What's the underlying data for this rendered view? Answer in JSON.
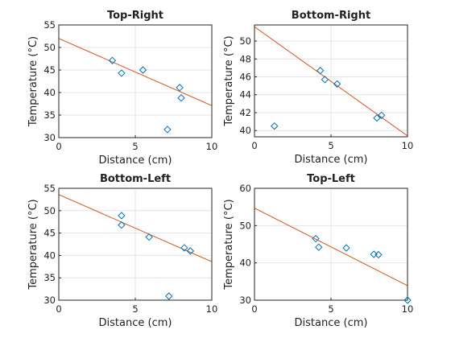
{
  "colors": {
    "points": "#0072bd",
    "fit_line": "#d95319",
    "grid": "#e4e4e4",
    "axes": "#262626"
  },
  "chart_data": [
    {
      "type": "scatter",
      "title": "Top-Right",
      "xlabel": "Distance (cm)",
      "ylabel": "Temperature (°C)",
      "xlim": [
        0,
        10
      ],
      "ylim": [
        30,
        55
      ],
      "xticks": [
        0,
        5,
        10
      ],
      "yticks": [
        30,
        35,
        40,
        45,
        50,
        55
      ],
      "grid": true,
      "points": {
        "x": [
          3.5,
          4.1,
          5.5,
          7.9,
          8.0,
          7.1
        ],
        "y": [
          47.1,
          44.3,
          45.0,
          41.1,
          38.8,
          31.8
        ]
      },
      "fit_line": {
        "x": [
          0,
          10
        ],
        "y": [
          52.0,
          37.1
        ]
      }
    },
    {
      "type": "scatter",
      "title": "Bottom-Right",
      "xlabel": "Distance (cm)",
      "ylabel": "Temperature (°C)",
      "xlim": [
        0,
        10
      ],
      "ylim": [
        39.3,
        51.8
      ],
      "xticks": [
        0,
        5,
        10
      ],
      "yticks": [
        40,
        42,
        44,
        46,
        48,
        50
      ],
      "grid": true,
      "points": {
        "x": [
          1.3,
          4.3,
          4.6,
          5.4,
          8.0,
          8.3
        ],
        "y": [
          40.5,
          46.7,
          45.7,
          45.2,
          41.4,
          41.7
        ]
      },
      "fit_line": {
        "x": [
          0,
          10
        ],
        "y": [
          51.6,
          39.4
        ]
      }
    },
    {
      "type": "scatter",
      "title": "Bottom-Left",
      "xlabel": "Distance (cm)",
      "ylabel": "Temperature (°C)",
      "xlim": [
        0,
        10
      ],
      "ylim": [
        30,
        55
      ],
      "xticks": [
        0,
        5,
        10
      ],
      "yticks": [
        30,
        35,
        40,
        45,
        50,
        55
      ],
      "grid": true,
      "points": {
        "x": [
          4.1,
          4.1,
          5.9,
          8.2,
          8.6,
          7.2
        ],
        "y": [
          48.9,
          46.8,
          44.1,
          41.7,
          41.0,
          30.9
        ]
      },
      "fit_line": {
        "x": [
          0,
          10
        ],
        "y": [
          53.6,
          38.6
        ]
      }
    },
    {
      "type": "scatter",
      "title": "Top-Left",
      "xlabel": "Distance (cm)",
      "ylabel": "Temperature (°C)",
      "xlim": [
        0,
        10
      ],
      "ylim": [
        30,
        60
      ],
      "xticks": [
        0,
        5,
        10
      ],
      "yticks": [
        30,
        40,
        50,
        60
      ],
      "grid": true,
      "points": {
        "x": [
          4.0,
          4.2,
          6.0,
          7.8,
          8.1,
          10.0
        ],
        "y": [
          46.5,
          44.2,
          44.0,
          42.3,
          42.2,
          30.0
        ]
      },
      "fit_line": {
        "x": [
          0,
          10
        ],
        "y": [
          54.7,
          33.9
        ]
      }
    }
  ]
}
